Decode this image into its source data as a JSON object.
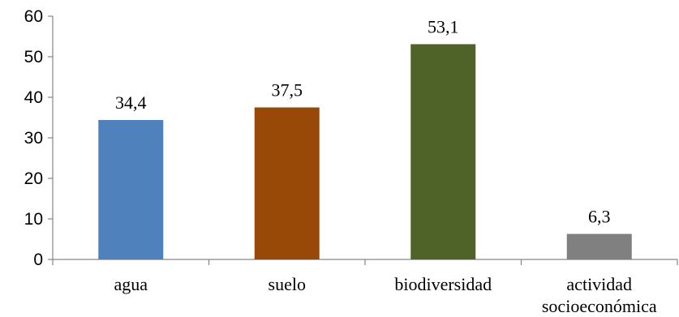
{
  "chart_data": {
    "type": "bar",
    "title": "",
    "xlabel": "",
    "ylabel": "",
    "ylim": [
      0,
      60
    ],
    "yticks": [
      0,
      10,
      20,
      30,
      40,
      50,
      60
    ],
    "grid": false,
    "categories": [
      [
        "agua"
      ],
      [
        "suelo"
      ],
      [
        "biodiversidad"
      ],
      [
        "actividad",
        "socioeconómica"
      ]
    ],
    "values": [
      34.4,
      37.5,
      53.1,
      6.3
    ],
    "data_labels": [
      "34,4",
      "37,5",
      "53,1",
      "6,3"
    ],
    "colors": [
      "#4F81BD",
      "#984807",
      "#4F6228",
      "#808080"
    ]
  }
}
